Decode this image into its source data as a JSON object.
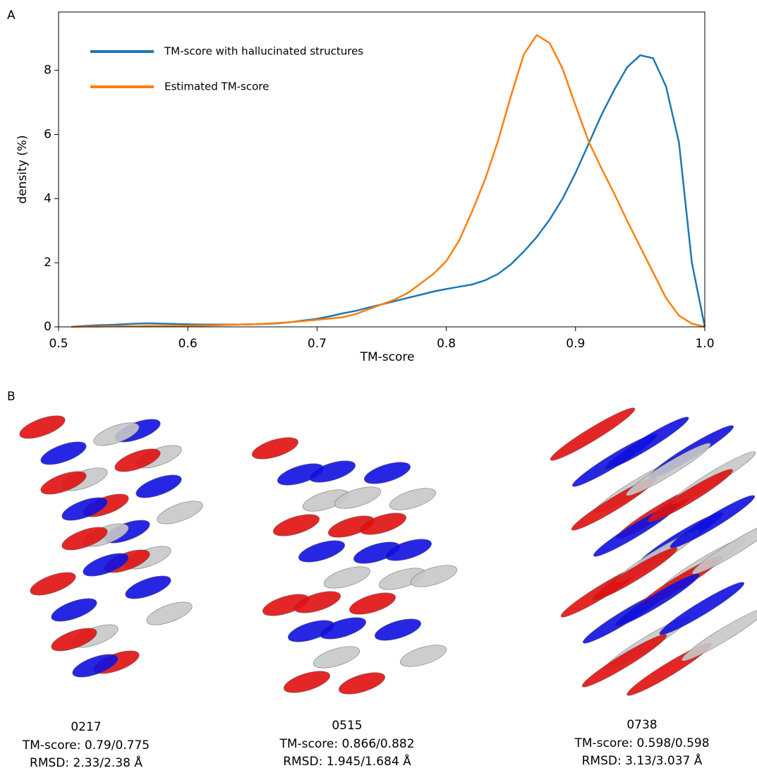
{
  "panels": {
    "a": "A",
    "b": "B"
  },
  "chart_data": {
    "type": "line",
    "xlabel": "TM-score",
    "ylabel": "density (%)",
    "x": [
      0.51,
      0.52,
      0.53,
      0.54,
      0.55,
      0.56,
      0.57,
      0.58,
      0.59,
      0.6,
      0.61,
      0.62,
      0.63,
      0.64,
      0.65,
      0.66,
      0.67,
      0.68,
      0.69,
      0.7,
      0.71,
      0.72,
      0.73,
      0.74,
      0.75,
      0.76,
      0.77,
      0.78,
      0.79,
      0.8,
      0.81,
      0.82,
      0.83,
      0.84,
      0.85,
      0.86,
      0.87,
      0.88,
      0.89,
      0.9,
      0.91,
      0.92,
      0.93,
      0.94,
      0.95,
      0.96,
      0.97,
      0.98,
      0.99,
      1.0
    ],
    "series": [
      {
        "name": "TM-score with hallucinated structures",
        "color": "#1f77b4",
        "values": [
          0,
          0.03,
          0.05,
          0.06,
          0.08,
          0.1,
          0.11,
          0.1,
          0.09,
          0.08,
          0.07,
          0.07,
          0.07,
          0.07,
          0.08,
          0.09,
          0.11,
          0.15,
          0.2,
          0.25,
          0.33,
          0.42,
          0.5,
          0.6,
          0.7,
          0.8,
          0.9,
          1.0,
          1.1,
          1.18,
          1.25,
          1.32,
          1.45,
          1.65,
          1.95,
          2.35,
          2.8,
          3.35,
          4.0,
          4.8,
          5.7,
          6.6,
          7.4,
          8.1,
          8.47,
          8.38,
          7.5,
          5.75,
          2.0,
          0
        ]
      },
      {
        "name": "Estimated TM-score",
        "color": "#ff7f0e",
        "values": [
          0,
          0.01,
          0.01,
          0.02,
          0.02,
          0.02,
          0.03,
          0.03,
          0.03,
          0.04,
          0.04,
          0.05,
          0.06,
          0.07,
          0.08,
          0.1,
          0.12,
          0.15,
          0.18,
          0.22,
          0.26,
          0.3,
          0.4,
          0.55,
          0.7,
          0.85,
          1.05,
          1.35,
          1.65,
          2.05,
          2.7,
          3.6,
          4.6,
          5.8,
          7.2,
          8.5,
          9.1,
          8.85,
          8.05,
          6.9,
          5.8,
          4.95,
          4.15,
          3.3,
          2.5,
          1.7,
          0.9,
          0.35,
          0.1,
          0
        ]
      }
    ],
    "xlim": [
      0.5,
      1.0
    ],
    "xticks": [
      0.5,
      0.6,
      0.7,
      0.8,
      0.9,
      {
        "value": 1.0,
        "label": "1.0"
      }
    ],
    "ylim": [
      0,
      9.82
    ],
    "yticks": [
      0,
      2,
      4,
      6,
      8
    ],
    "legend": "upper left"
  },
  "structures": [
    {
      "id": "0217",
      "tm": "TM-score: 0.79/0.775",
      "rmsd": "RMSD: 2.33/2.38 Å"
    },
    {
      "id": "0515",
      "tm": "TM-score: 0.866/0.882",
      "rmsd": "RMSD: 1.945/1.684 Å"
    },
    {
      "id": "0738",
      "tm": "TM-score: 0.598/0.598",
      "rmsd": "RMSD: 3.13/3.037 Å"
    }
  ]
}
